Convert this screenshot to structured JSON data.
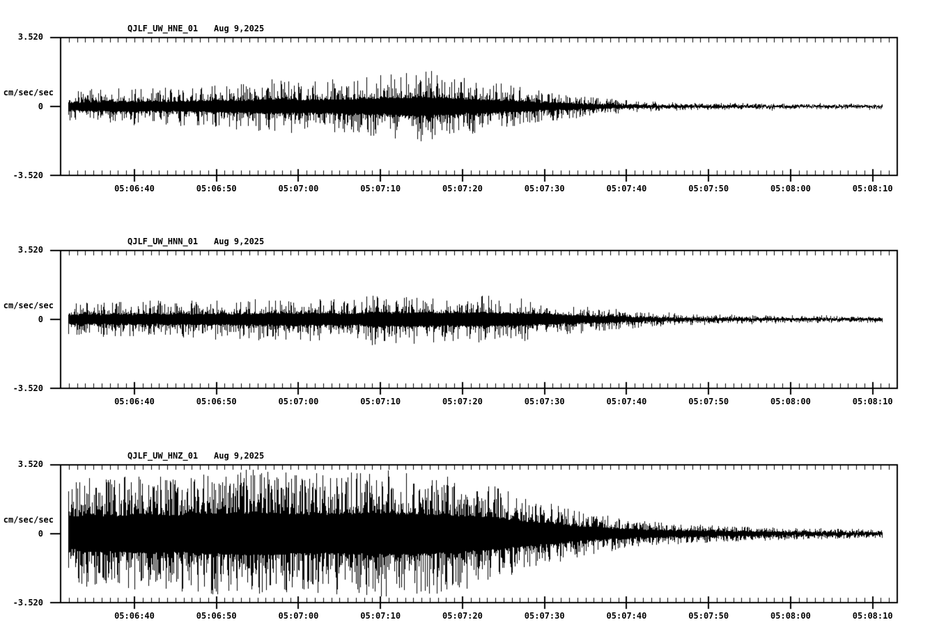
{
  "page": {
    "background_color": "#ffffff",
    "trace_color": "#000000"
  },
  "chart_data": {
    "type": "seismogram",
    "description": "Three-component strong-motion seismogram traces, vertical amplitude vs time",
    "axis": {
      "y_max_label": "3.520",
      "y_zero_label": "0",
      "y_min_label": "-3.520",
      "y_unit": "cm/sec/sec",
      "ylim": [
        -3.52,
        3.52
      ],
      "time_left_edge": "05:06:31",
      "time_right_edge": "05:08:13",
      "time_span_sec": 102,
      "first_major_offset_sec": 9,
      "major_tick_interval_sec": 10,
      "minor_tick_interval_sec": 1,
      "x_tick_labels": [
        "05:06:40",
        "05:06:50",
        "05:07:00",
        "05:07:10",
        "05:07:20",
        "05:07:30",
        "05:07:40",
        "05:07:50",
        "05:08:00",
        "05:08:10"
      ]
    },
    "panels": [
      {
        "station": "QJLF_UW_HNE_01",
        "date": "Aug 9,2025",
        "seed": 101,
        "texture": {
          "core_frac": 0.26,
          "spike_power": 3.2
        },
        "envelope": [
          [
            1,
            0.78
          ],
          [
            4,
            0.92
          ],
          [
            10,
            1.0
          ],
          [
            16,
            1.07
          ],
          [
            22,
            1.21
          ],
          [
            26,
            1.42
          ],
          [
            30,
            1.28
          ],
          [
            34,
            1.42
          ],
          [
            38,
            1.56
          ],
          [
            42,
            1.78
          ],
          [
            45,
            1.85
          ],
          [
            48,
            1.56
          ],
          [
            52,
            1.35
          ],
          [
            55,
            1.14
          ],
          [
            58,
            0.92
          ],
          [
            61,
            0.71
          ],
          [
            64,
            0.53
          ],
          [
            68,
            0.36
          ],
          [
            72,
            0.25
          ],
          [
            76,
            0.21
          ],
          [
            82,
            0.18
          ],
          [
            90,
            0.14
          ],
          [
            100,
            0.14
          ]
        ]
      },
      {
        "station": "QJLF_UW_HNN_01",
        "date": "Aug 9,2025",
        "seed": 202,
        "texture": {
          "core_frac": 0.28,
          "spike_power": 3.4
        },
        "envelope": [
          [
            1,
            0.85
          ],
          [
            6,
            0.92
          ],
          [
            12,
            1.0
          ],
          [
            18,
            1.0
          ],
          [
            24,
            1.07
          ],
          [
            30,
            1.14
          ],
          [
            34,
            1.07
          ],
          [
            37,
            1.1
          ],
          [
            38.5,
            1.49
          ],
          [
            40,
            1.21
          ],
          [
            44,
            1.28
          ],
          [
            48,
            1.21
          ],
          [
            52,
            1.28
          ],
          [
            56,
            1.14
          ],
          [
            60,
            0.92
          ],
          [
            64,
            0.71
          ],
          [
            68,
            0.53
          ],
          [
            72,
            0.39
          ],
          [
            76,
            0.28
          ],
          [
            80,
            0.25
          ],
          [
            86,
            0.21
          ],
          [
            93,
            0.18
          ],
          [
            100,
            0.18
          ]
        ]
      },
      {
        "station": "QJLF_UW_HNZ_01",
        "date": "Aug 9,2025",
        "seed": 303,
        "texture": {
          "core_frac": 0.32,
          "spike_power": 2.2
        },
        "envelope": [
          [
            1,
            2.42
          ],
          [
            3,
            3.02
          ],
          [
            6,
            2.84
          ],
          [
            10,
            3.13
          ],
          [
            14,
            2.92
          ],
          [
            18,
            3.2
          ],
          [
            22,
            3.38
          ],
          [
            26,
            3.27
          ],
          [
            30,
            3.13
          ],
          [
            34,
            3.2
          ],
          [
            38,
            3.38
          ],
          [
            42,
            3.27
          ],
          [
            46,
            3.13
          ],
          [
            50,
            2.84
          ],
          [
            53,
            2.56
          ],
          [
            56,
            2.13
          ],
          [
            59,
            1.71
          ],
          [
            62,
            1.35
          ],
          [
            65,
            1.07
          ],
          [
            68,
            0.85
          ],
          [
            72,
            0.64
          ],
          [
            76,
            0.5
          ],
          [
            80,
            0.43
          ],
          [
            85,
            0.36
          ],
          [
            90,
            0.28
          ],
          [
            95,
            0.25
          ],
          [
            100,
            0.21
          ]
        ]
      }
    ]
  }
}
